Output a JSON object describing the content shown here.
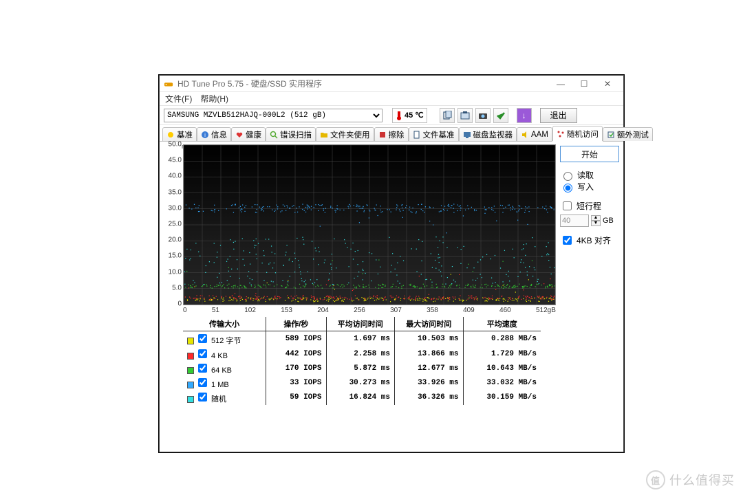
{
  "window": {
    "title": "HD Tune Pro 5.75 - 硬盘/SSD 实用程序",
    "min": "—",
    "max": "☐",
    "close": "✕"
  },
  "menu": {
    "file": "文件(F)",
    "help": "帮助(H)"
  },
  "toolbar": {
    "drive": "SAMSUNG MZVLB512HAJQ-000L2 (512 gB)",
    "temp_value": "45",
    "temp_unit": "℃",
    "exit": "退出"
  },
  "tabs": {
    "benchmark": "基准",
    "info": "信息",
    "health": "健康",
    "errorscan": "错误扫描",
    "folder": "文件夹使用",
    "erase": "擦除",
    "filebench": "文件基准",
    "monitor": "磁盘监视器",
    "aam": "AAM",
    "random": "随机访问",
    "extra": "额外测试"
  },
  "side": {
    "start": "开始",
    "read": "读取",
    "write": "写入",
    "short": "短行程",
    "short_value": "40",
    "short_unit": "GB",
    "align4k": "4KB 对齐"
  },
  "chart": {
    "type": "scatter",
    "y_unit": "ms",
    "ylim": [
      0,
      50
    ],
    "ytick_step": 5,
    "yticks": [
      "50.0",
      "45.0",
      "40.0",
      "35.0",
      "30.0",
      "25.0",
      "20.0",
      "15.0",
      "10.0",
      "5.0",
      "0"
    ],
    "xlim": [
      0,
      512
    ],
    "x_unit": "gB",
    "xticks": [
      "0",
      "51",
      "102",
      "153",
      "204",
      "256",
      "307",
      "358",
      "409",
      "460",
      "512gB"
    ],
    "background_color": "#0d0d0d",
    "grid_color": "#4a4a4a",
    "series_colors": {
      "512B": "#e6e600",
      "4KB": "#ff2a2a",
      "64KB": "#33cc33",
      "1MB": "#33aaff",
      "random": "#33e0e0"
    },
    "series_band_ms": {
      "512B": 1.7,
      "4KB": 2.3,
      "64KB": 5.9,
      "1MB": 30.3,
      "random": 16.8
    }
  },
  "results": {
    "headers": [
      "传输大小",
      "操作/秒",
      "平均访问时间",
      "最大访问时间",
      "平均速度"
    ],
    "rows": [
      {
        "color": "#e6e600",
        "label": "512 字节",
        "checked": true,
        "iops": "589 IOPS",
        "avg": "1.697 ms",
        "max": "10.503 ms",
        "speed": "0.288 MB/s"
      },
      {
        "color": "#ff2a2a",
        "label": "4 KB",
        "checked": true,
        "iops": "442 IOPS",
        "avg": "2.258 ms",
        "max": "13.866 ms",
        "speed": "1.729 MB/s"
      },
      {
        "color": "#33cc33",
        "label": "64 KB",
        "checked": true,
        "iops": "170 IOPS",
        "avg": "5.872 ms",
        "max": "12.677 ms",
        "speed": "10.643 MB/s"
      },
      {
        "color": "#33aaff",
        "label": "1 MB",
        "checked": true,
        "iops": "33 IOPS",
        "avg": "30.273 ms",
        "max": "33.926 ms",
        "speed": "33.032 MB/s"
      },
      {
        "color": "#33e0e0",
        "label": "随机",
        "checked": true,
        "iops": "59 IOPS",
        "avg": "16.824 ms",
        "max": "36.326 ms",
        "speed": "30.159 MB/s"
      }
    ]
  },
  "watermark": {
    "brand": "值",
    "text": "什么值得买"
  }
}
